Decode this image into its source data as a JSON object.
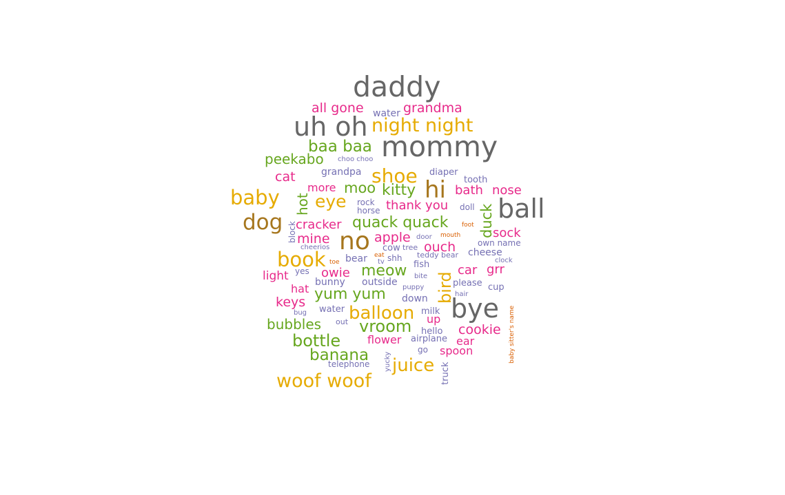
{
  "colors": {
    "gray": "#666666",
    "pink": "#e7298a",
    "gold": "#e6ab02",
    "green": "#66a61e",
    "purple": "#7570b3",
    "brown": "#a6761d",
    "orange": "#d95f02"
  },
  "chart_data": {
    "type": "wordcloud",
    "words": [
      {
        "text": "daddy",
        "color": "gray",
        "weight": 42
      },
      {
        "text": "mommy",
        "color": "gray",
        "weight": 42
      },
      {
        "text": "uh oh",
        "color": "gray",
        "weight": 39
      },
      {
        "text": "ball",
        "color": "gray",
        "weight": 39
      },
      {
        "text": "bye",
        "color": "gray",
        "weight": 39
      },
      {
        "text": "no",
        "color": "brown",
        "weight": 37
      },
      {
        "text": "hi",
        "color": "brown",
        "weight": 35
      },
      {
        "text": "dog",
        "color": "brown",
        "weight": 32
      },
      {
        "text": "baby",
        "color": "gold",
        "weight": 30
      },
      {
        "text": "book",
        "color": "gold",
        "weight": 30
      },
      {
        "text": "shoe",
        "color": "gold",
        "weight": 29
      },
      {
        "text": "night night",
        "color": "gold",
        "weight": 28
      },
      {
        "text": "woof woof",
        "color": "gold",
        "weight": 28
      },
      {
        "text": "balloon",
        "color": "gold",
        "weight": 27
      },
      {
        "text": "juice",
        "color": "gold",
        "weight": 27
      },
      {
        "text": "eye",
        "color": "gold",
        "weight": 26
      },
      {
        "text": "bird",
        "color": "gold",
        "weight": 25
      },
      {
        "text": "bottle",
        "color": "green",
        "weight": 25
      },
      {
        "text": "vroom",
        "color": "green",
        "weight": 25
      },
      {
        "text": "baa baa",
        "color": "green",
        "weight": 24
      },
      {
        "text": "banana",
        "color": "green",
        "weight": 24
      },
      {
        "text": "quack quack",
        "color": "green",
        "weight": 23
      },
      {
        "text": "yum yum",
        "color": "green",
        "weight": 23
      },
      {
        "text": "kitty",
        "color": "green",
        "weight": 23
      },
      {
        "text": "meow",
        "color": "green",
        "weight": 23
      },
      {
        "text": "moo",
        "color": "green",
        "weight": 22
      },
      {
        "text": "duck",
        "color": "green",
        "weight": 22
      },
      {
        "text": "hot",
        "color": "green",
        "weight": 21
      },
      {
        "text": "peekabo",
        "color": "green",
        "weight": 21
      },
      {
        "text": "bubbles",
        "color": "green",
        "weight": 21
      },
      {
        "text": "mine",
        "color": "pink",
        "weight": 20
      },
      {
        "text": "apple",
        "color": "pink",
        "weight": 20
      },
      {
        "text": "ouch",
        "color": "pink",
        "weight": 20
      },
      {
        "text": "all gone",
        "color": "pink",
        "weight": 20
      },
      {
        "text": "grandma",
        "color": "pink",
        "weight": 20
      },
      {
        "text": "cat",
        "color": "pink",
        "weight": 20
      },
      {
        "text": "keys",
        "color": "pink",
        "weight": 20
      },
      {
        "text": "cookie",
        "color": "pink",
        "weight": 20
      },
      {
        "text": "bath",
        "color": "pink",
        "weight": 19
      },
      {
        "text": "nose",
        "color": "pink",
        "weight": 19
      },
      {
        "text": "thank you",
        "color": "pink",
        "weight": 19
      },
      {
        "text": "cracker",
        "color": "pink",
        "weight": 19
      },
      {
        "text": "sock",
        "color": "pink",
        "weight": 19
      },
      {
        "text": "owie",
        "color": "pink",
        "weight": 19
      },
      {
        "text": "car",
        "color": "pink",
        "weight": 19
      },
      {
        "text": "grr",
        "color": "pink",
        "weight": 19
      },
      {
        "text": "light",
        "color": "pink",
        "weight": 18
      },
      {
        "text": "up",
        "color": "pink",
        "weight": 17
      },
      {
        "text": "hat",
        "color": "pink",
        "weight": 16
      },
      {
        "text": "flower",
        "color": "pink",
        "weight": 16
      },
      {
        "text": "ear",
        "color": "pink",
        "weight": 16
      },
      {
        "text": "spoon",
        "color": "pink",
        "weight": 16
      },
      {
        "text": "more",
        "color": "pink",
        "weight": 16
      },
      {
        "text": "water",
        "color": "purple",
        "weight": 14
      },
      {
        "text": "grandpa",
        "color": "purple",
        "weight": 14
      },
      {
        "text": "diaper",
        "color": "purple",
        "weight": 13
      },
      {
        "text": "tooth",
        "color": "purple",
        "weight": 13
      },
      {
        "text": "rock",
        "color": "purple",
        "weight": 12
      },
      {
        "text": "horse",
        "color": "purple",
        "weight": 12
      },
      {
        "text": "doll",
        "color": "purple",
        "weight": 12
      },
      {
        "text": "cheese",
        "color": "purple",
        "weight": 14
      },
      {
        "text": "own name",
        "color": "purple",
        "weight": 12
      },
      {
        "text": "cow",
        "color": "purple",
        "weight": 13
      },
      {
        "text": "tree",
        "color": "purple",
        "weight": 11
      },
      {
        "text": "bear",
        "color": "purple",
        "weight": 14
      },
      {
        "text": "shh",
        "color": "purple",
        "weight": 12
      },
      {
        "text": "teddy bear",
        "color": "purple",
        "weight": 11
      },
      {
        "text": "fish",
        "color": "purple",
        "weight": 13
      },
      {
        "text": "bunny",
        "color": "purple",
        "weight": 14
      },
      {
        "text": "outside",
        "color": "purple",
        "weight": 14
      },
      {
        "text": "please",
        "color": "purple",
        "weight": 13
      },
      {
        "text": "cup",
        "color": "purple",
        "weight": 13
      },
      {
        "text": "down",
        "color": "purple",
        "weight": 14
      },
      {
        "text": "water",
        "color": "purple",
        "weight": 13
      },
      {
        "text": "milk",
        "color": "purple",
        "weight": 13
      },
      {
        "text": "hello",
        "color": "purple",
        "weight": 13
      },
      {
        "text": "airplane",
        "color": "purple",
        "weight": 13
      },
      {
        "text": "go",
        "color": "purple",
        "weight": 12
      },
      {
        "text": "telephone",
        "color": "purple",
        "weight": 12
      },
      {
        "text": "yes",
        "color": "purple",
        "weight": 12
      },
      {
        "text": "block",
        "color": "purple",
        "weight": 12
      },
      {
        "text": "truck",
        "color": "purple",
        "weight": 13
      },
      {
        "text": "choo choo",
        "color": "purple",
        "weight": 10
      },
      {
        "text": "cheerios",
        "color": "purple",
        "weight": 10
      },
      {
        "text": "door",
        "color": "purple",
        "weight": 10
      },
      {
        "text": "tv",
        "color": "purple",
        "weight": 10
      },
      {
        "text": "clock",
        "color": "purple",
        "weight": 10
      },
      {
        "text": "bite",
        "color": "purple",
        "weight": 10
      },
      {
        "text": "puppy",
        "color": "purple",
        "weight": 10
      },
      {
        "text": "hair",
        "color": "purple",
        "weight": 10
      },
      {
        "text": "bug",
        "color": "purple",
        "weight": 10
      },
      {
        "text": "out",
        "color": "purple",
        "weight": 11
      },
      {
        "text": "yucky",
        "color": "purple",
        "weight": 10
      },
      {
        "text": "foot",
        "color": "orange",
        "weight": 9
      },
      {
        "text": "mouth",
        "color": "orange",
        "weight": 9
      },
      {
        "text": "eat",
        "color": "orange",
        "weight": 9
      },
      {
        "text": "toe",
        "color": "orange",
        "weight": 9
      },
      {
        "text": "baby sitter's name",
        "color": "orange",
        "weight": 9
      }
    ]
  }
}
